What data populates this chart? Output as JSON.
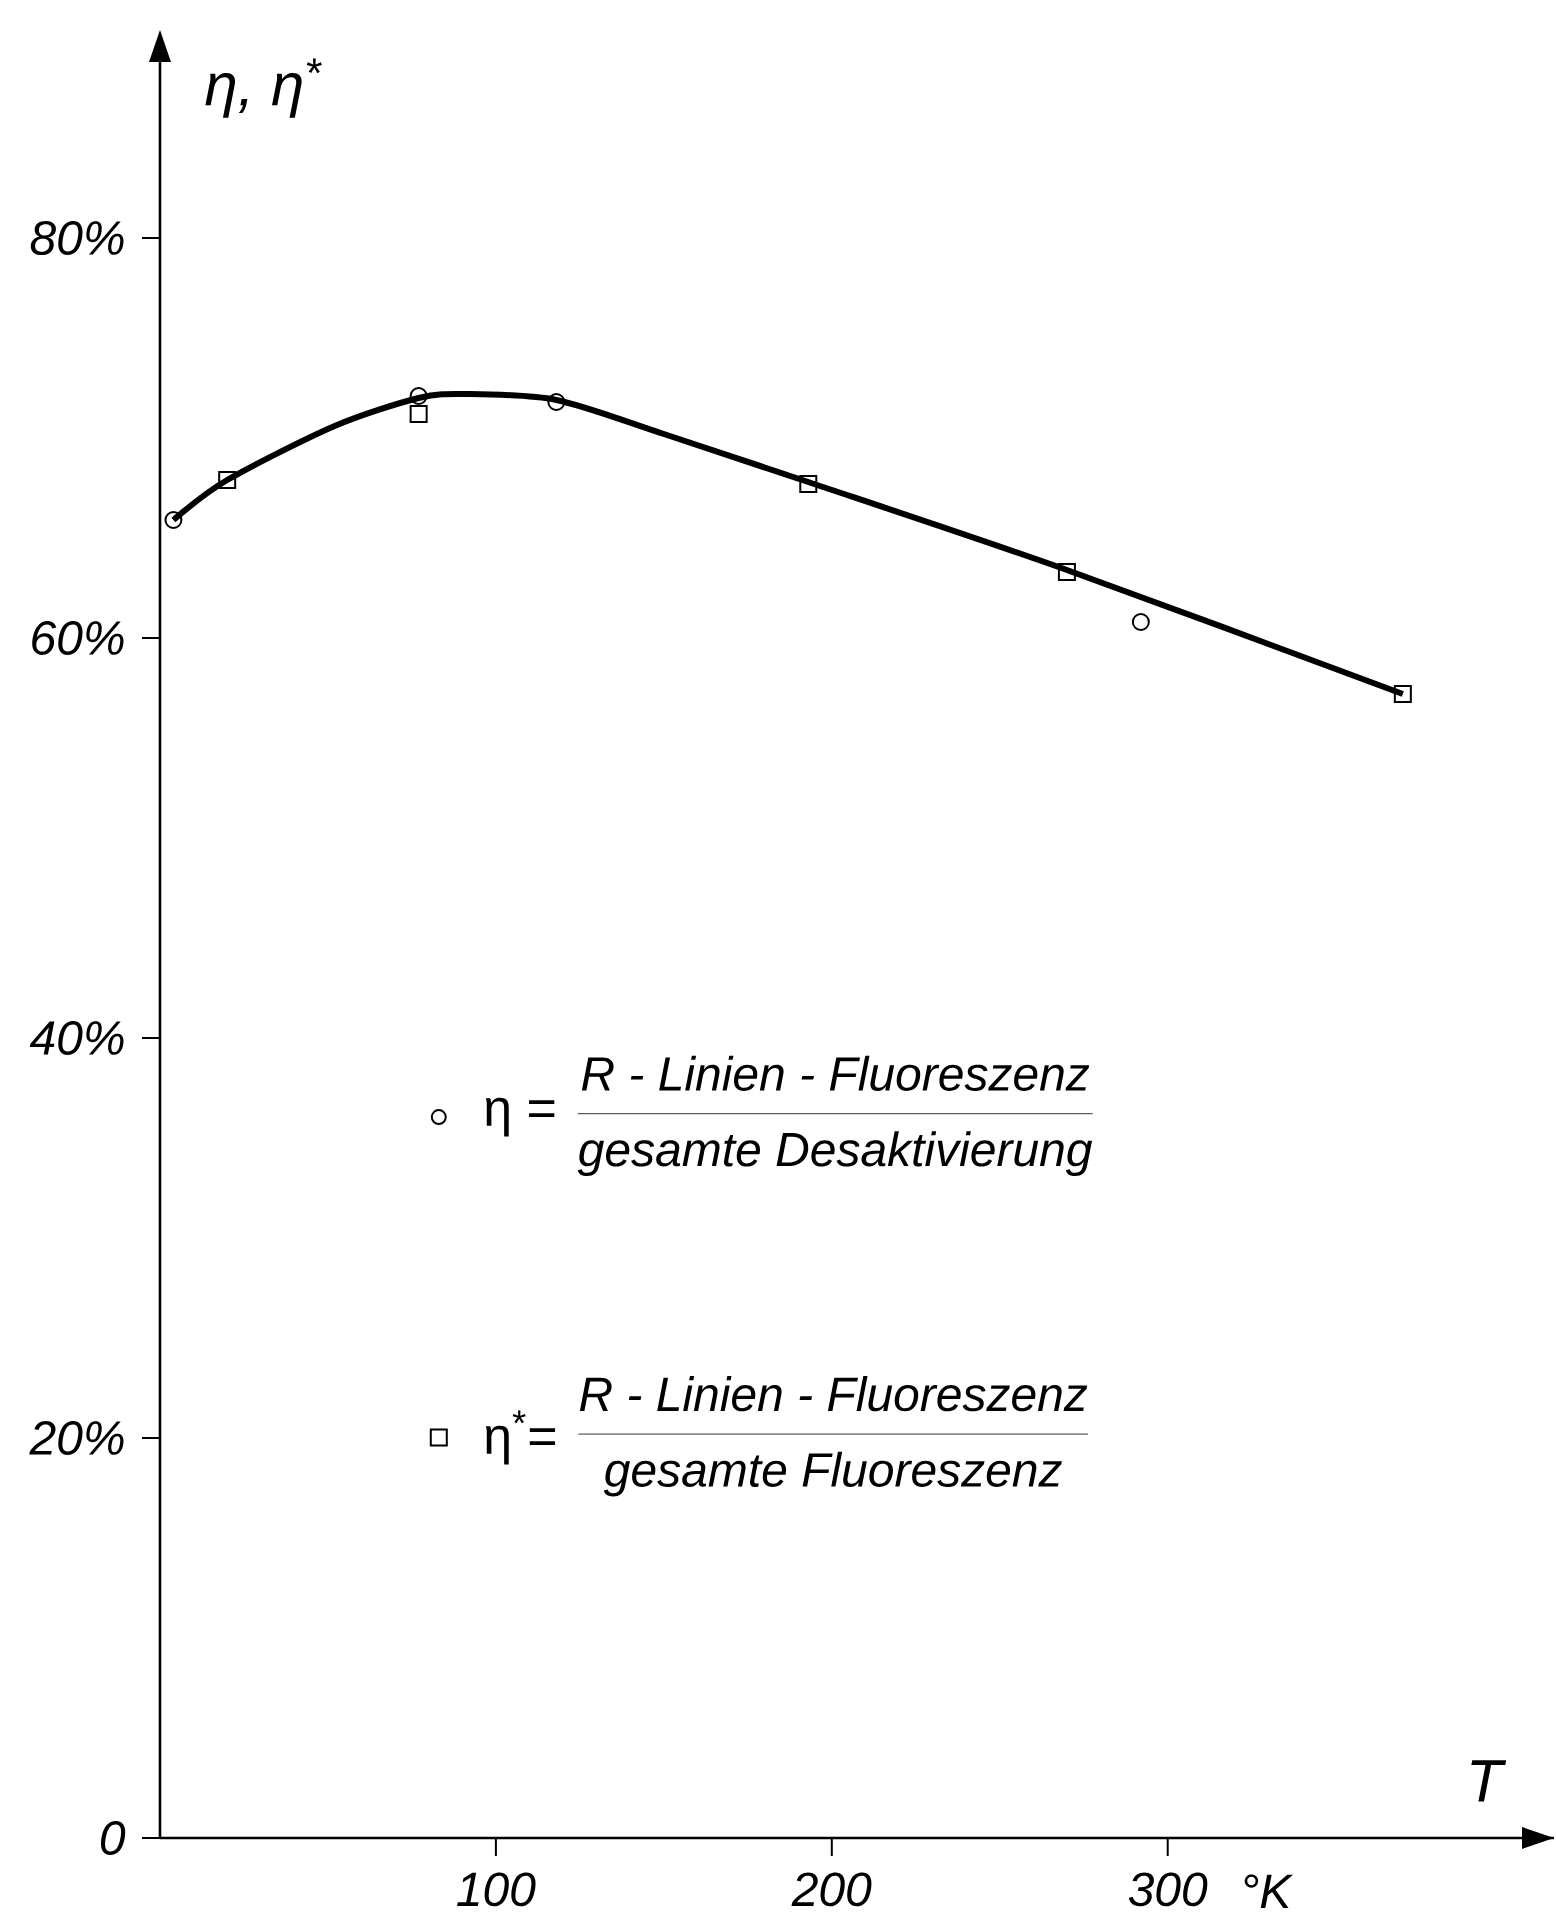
{
  "chart_data": {
    "type": "scatter",
    "ylabel": "η, η$^{*}$",
    "xlabel": "T",
    "annotations": [
      "°K",
      "R - Linien - Fluoreszenz",
      "gesamte  Desaktivierung",
      "R - Linien - Fluoreszenz",
      "gesamte  Fluoreszenz"
    ],
    "xlim": [
      0,
      415
    ],
    "ylim": [
      0,
      89
    ],
    "xticks": [
      100,
      200,
      300
    ],
    "yticks": [
      {
        "value": 0,
        "label": "0"
      },
      {
        "value": 20,
        "label": "20%"
      },
      {
        "value": 40,
        "label": "40%"
      },
      {
        "value": 60,
        "label": "60%"
      },
      {
        "value": 80,
        "label": "80%"
      }
    ],
    "legend": "bottom",
    "series": [
      {
        "name": "η =",
        "marker": "circle",
        "color": "#000000",
        "x": [
          4,
          77,
          118,
          292
        ],
        "values": [
          65.9,
          72.1,
          71.8,
          60.8
        ]
      },
      {
        "name": "η$^{*}$=",
        "marker": "square",
        "color": "#000000",
        "x": [
          20,
          77,
          193,
          270,
          370
        ],
        "values": [
          67.9,
          71.2,
          67.7,
          63.3,
          57.2
        ]
      },
      {
        "type": "line",
        "marker": "none",
        "color": "#000000",
        "x": [
          4,
          20,
          52,
          77,
          91,
          118,
          150,
          193,
          270,
          370
        ],
        "values": [
          65.9,
          67.9,
          70.6,
          72.0,
          72.2,
          71.9,
          70.2,
          67.8,
          63.4,
          57.2
        ]
      }
    ]
  }
}
